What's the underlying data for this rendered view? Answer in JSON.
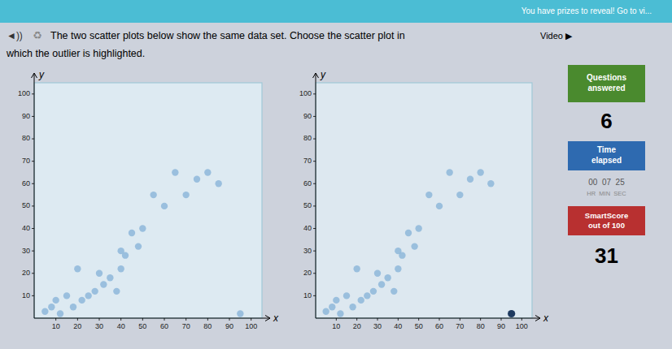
{
  "page": {
    "header_text": "You have prizes to reveal! Go to vi...",
    "icon_speaker": "◄))",
    "icon_recycle": "♻",
    "title_line1": "The two scatter plots below show the same data set. Choose the scatter plot in",
    "title_line2": "which the outlier is highlighted.",
    "video_label": "Video ▶",
    "questions_label": "Questions\nanswered",
    "questions_count": "6",
    "time_label": "Time\nelapsed",
    "time_value": "00  07  25",
    "time_units": "HR  MIN  SEC",
    "smartscore_label": "SmartScore\nout of 100",
    "smartscore_value": "31"
  },
  "chart_data": [
    {
      "type": "scatter",
      "x_label": "x",
      "y_label": "y",
      "x": [
        5,
        8,
        10,
        12,
        15,
        18,
        20,
        22,
        25,
        28,
        30,
        32,
        35,
        38,
        40,
        40,
        42,
        45,
        48,
        50,
        55,
        60,
        65,
        70,
        75,
        80,
        85,
        95
      ],
      "values": [
        3,
        5,
        8,
        2,
        10,
        5,
        22,
        8,
        10,
        12,
        20,
        15,
        18,
        12,
        22,
        30,
        28,
        38,
        32,
        40,
        55,
        50,
        65,
        55,
        62,
        65,
        60,
        2
      ],
      "color": "#8ab4d8",
      "xlim": [
        0,
        105
      ],
      "ylim": [
        0,
        105
      ],
      "xticks": [
        10,
        20,
        30,
        40,
        50,
        60,
        70,
        80,
        90,
        100
      ],
      "yticks": [
        10,
        20,
        30,
        40,
        50,
        60,
        70,
        80,
        90,
        100
      ],
      "grid": false
    },
    {
      "type": "scatter",
      "x_label": "x",
      "y_label": "y",
      "x": [
        5,
        8,
        10,
        12,
        15,
        18,
        20,
        22,
        25,
        28,
        30,
        32,
        35,
        38,
        40,
        40,
        42,
        45,
        48,
        50,
        55,
        60,
        65,
        70,
        75,
        80,
        85,
        95
      ],
      "values": [
        3,
        5,
        8,
        2,
        10,
        5,
        22,
        8,
        10,
        12,
        20,
        15,
        18,
        12,
        22,
        30,
        28,
        38,
        32,
        40,
        55,
        50,
        65,
        55,
        62,
        65,
        60,
        2
      ],
      "colors": [
        "#8ab4d8",
        "#8ab4d8",
        "#8ab4d8",
        "#8ab4d8",
        "#8ab4d8",
        "#8ab4d8",
        "#8ab4d8",
        "#8ab4d8",
        "#8ab4d8",
        "#8ab4d8",
        "#8ab4d8",
        "#8ab4d8",
        "#8ab4d8",
        "#8ab4d8",
        "#8ab4d8",
        "#8ab4d8",
        "#8ab4d8",
        "#8ab4d8",
        "#8ab4d8",
        "#8ab4d8",
        "#8ab4d8",
        "#8ab4d8",
        "#8ab4d8",
        "#8ab4d8",
        "#8ab4d8",
        "#8ab4d8",
        "#8ab4d8",
        "#1e3a5f"
      ],
      "xlim": [
        0,
        105
      ],
      "ylim": [
        0,
        105
      ],
      "xticks": [
        10,
        20,
        30,
        40,
        50,
        60,
        70,
        80,
        90,
        100
      ],
      "yticks": [
        10,
        20,
        30,
        40,
        50,
        60,
        70,
        80,
        90,
        100
      ],
      "grid": false
    }
  ]
}
